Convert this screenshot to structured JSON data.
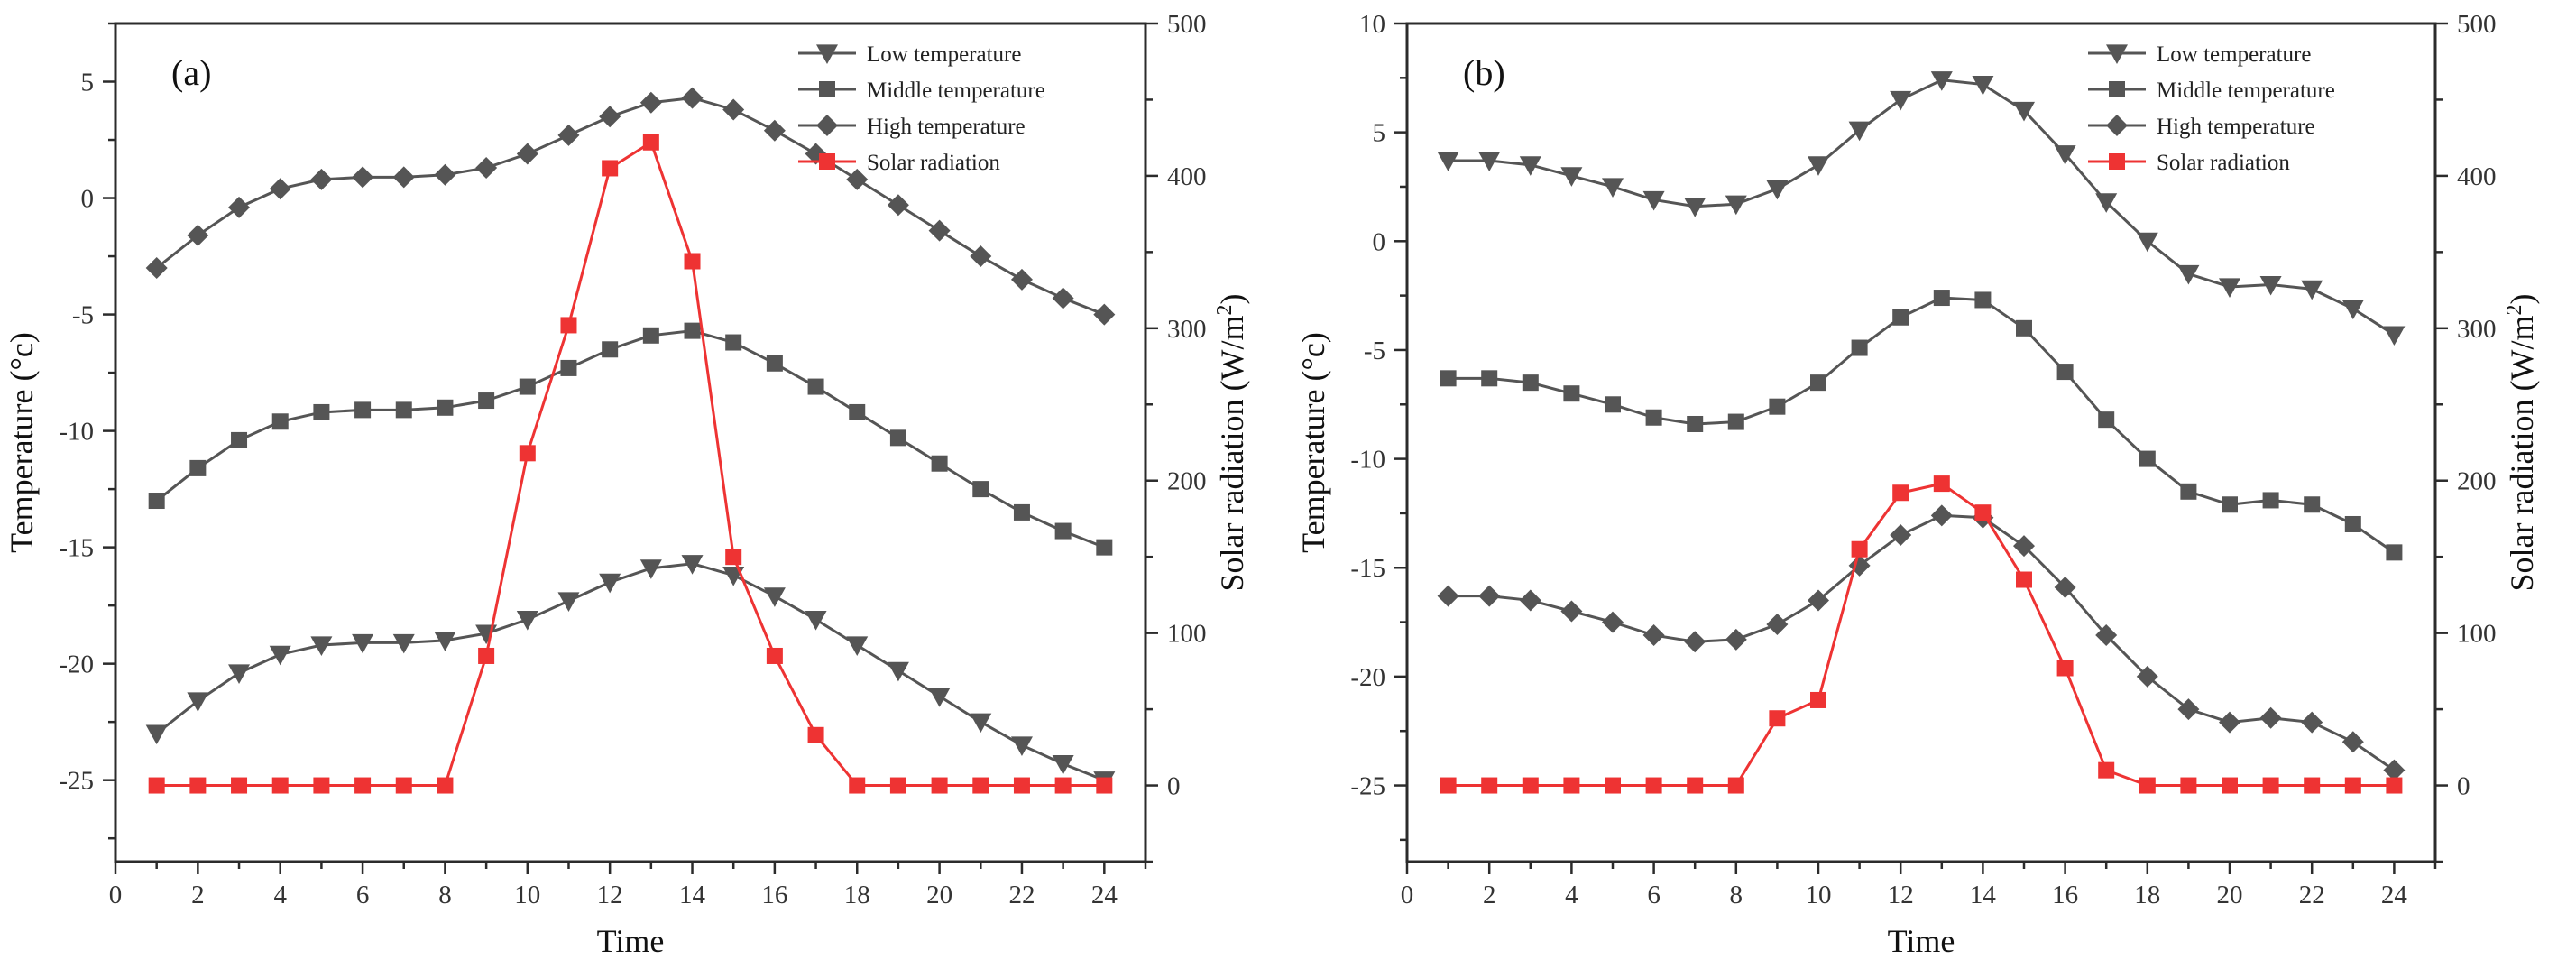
{
  "colors": {
    "temp_series": "#555555",
    "solar_series": "#ee3333",
    "axis": "#2b2b2b"
  },
  "chart_data": [
    {
      "type": "line",
      "panel_label": "(a)",
      "xlabel": "Time",
      "ylabel_left": "Temperature (°c)",
      "ylabel_right_main": "Solar radiation (W/m",
      "ylabel_right_sup": "2",
      "ylabel_right_end": ")",
      "xlim": [
        0,
        25
      ],
      "xticks": [
        "0",
        "2",
        "4",
        "6",
        "8",
        "10",
        "12",
        "14",
        "16",
        "18",
        "20",
        "22",
        "24"
      ],
      "ylim_left": [
        -28.5,
        7.5
      ],
      "yticks_left": [
        "-25",
        "-20",
        "-15",
        "-10",
        "-5",
        "0",
        "5"
      ],
      "ylim_right": [
        -50,
        500
      ],
      "yticks_right": [
        "0",
        "100",
        "200",
        "300",
        "400",
        "500"
      ],
      "legend_position": "top-right",
      "x": [
        1,
        2,
        3,
        4,
        5,
        6,
        7,
        8,
        9,
        10,
        11,
        12,
        13,
        14,
        15,
        16,
        17,
        18,
        19,
        20,
        21,
        22,
        23,
        24
      ],
      "series": [
        {
          "name": "Low temperature",
          "axis": "left",
          "marker": "triangle-down",
          "values": [
            -23.0,
            -21.6,
            -20.4,
            -19.6,
            -19.2,
            -19.1,
            -19.1,
            -19.0,
            -18.7,
            -18.1,
            -17.3,
            -16.5,
            -15.9,
            -15.7,
            -16.2,
            -17.1,
            -18.1,
            -19.2,
            -20.3,
            -21.4,
            -22.5,
            -23.5,
            -24.3,
            -25.0
          ]
        },
        {
          "name": "Middle temperature",
          "axis": "left",
          "marker": "square",
          "values": [
            -13.0,
            -11.6,
            -10.4,
            -9.6,
            -9.2,
            -9.1,
            -9.1,
            -9.0,
            -8.7,
            -8.1,
            -7.3,
            -6.5,
            -5.9,
            -5.7,
            -6.2,
            -7.1,
            -8.1,
            -9.2,
            -10.3,
            -11.4,
            -12.5,
            -13.5,
            -14.3,
            -15.0
          ]
        },
        {
          "name": "High temperature",
          "axis": "left",
          "marker": "diamond",
          "values": [
            -3.0,
            -1.6,
            -0.4,
            0.4,
            0.8,
            0.9,
            0.9,
            1.0,
            1.3,
            1.9,
            2.7,
            3.5,
            4.1,
            4.3,
            3.8,
            2.9,
            1.9,
            0.8,
            -0.3,
            -1.4,
            -2.5,
            -3.5,
            -4.3,
            -5.0
          ]
        },
        {
          "name": "Solar radiation",
          "axis": "right",
          "marker": "square",
          "values": [
            0,
            0,
            0,
            0,
            0,
            0,
            0,
            0,
            85,
            218,
            302,
            405,
            422,
            344,
            150,
            85,
            33,
            0,
            0,
            0,
            0,
            0,
            0,
            0
          ]
        }
      ]
    },
    {
      "type": "line",
      "panel_label": "(b)",
      "xlabel": "Time",
      "ylabel_left": "Temperature (°c)",
      "ylabel_right_main": "Solar radiation (W/m",
      "ylabel_right_sup": "2",
      "ylabel_right_end": ")",
      "xlim": [
        0,
        25
      ],
      "xticks": [
        "0",
        "2",
        "4",
        "6",
        "8",
        "10",
        "12",
        "14",
        "16",
        "18",
        "20",
        "22",
        "24"
      ],
      "ylim_left": [
        -28.5,
        10
      ],
      "yticks_left": [
        "-25",
        "-20",
        "-15",
        "-10",
        "-5",
        "0",
        "5",
        "10"
      ],
      "ylim_right": [
        -50,
        500
      ],
      "yticks_right": [
        "0",
        "100",
        "200",
        "300",
        "400",
        "500"
      ],
      "legend_position": "top-right",
      "x": [
        1,
        2,
        3,
        4,
        5,
        6,
        7,
        8,
        9,
        10,
        11,
        12,
        13,
        14,
        15,
        16,
        17,
        18,
        19,
        20,
        21,
        22,
        23,
        24
      ],
      "series": [
        {
          "name": "Low temperature",
          "axis": "left",
          "marker": "triangle-down",
          "values": [
            3.7,
            3.7,
            3.5,
            3.0,
            2.5,
            1.9,
            1.6,
            1.7,
            2.4,
            3.5,
            5.1,
            6.5,
            7.4,
            7.2,
            6.0,
            4.0,
            1.8,
            0.0,
            -1.5,
            -2.1,
            -2.0,
            -2.2,
            -3.1,
            -4.3
          ]
        },
        {
          "name": "Middle temperature",
          "axis": "left",
          "marker": "square",
          "values": [
            -6.3,
            -6.3,
            -6.5,
            -7.0,
            -7.5,
            -8.1,
            -8.4,
            -8.3,
            -7.6,
            -6.5,
            -4.9,
            -3.5,
            -2.6,
            -2.7,
            -4.0,
            -6.0,
            -8.2,
            -10.0,
            -11.5,
            -12.1,
            -11.9,
            -12.1,
            -13.0,
            -14.3
          ]
        },
        {
          "name": "High temperature",
          "axis": "left",
          "marker": "diamond",
          "values": [
            -16.3,
            -16.3,
            -16.5,
            -17.0,
            -17.5,
            -18.1,
            -18.4,
            -18.3,
            -17.6,
            -16.5,
            -14.9,
            -13.5,
            -12.6,
            -12.7,
            -14.0,
            -15.9,
            -18.1,
            -20.0,
            -21.5,
            -22.1,
            -21.9,
            -22.1,
            -23.0,
            -24.3
          ]
        },
        {
          "name": "Solar radiation",
          "axis": "right",
          "marker": "square",
          "values": [
            0,
            0,
            0,
            0,
            0,
            0,
            0,
            0,
            44,
            56,
            155,
            192,
            198,
            179,
            135,
            77,
            10,
            0,
            0,
            0,
            0,
            0,
            0,
            0
          ]
        }
      ]
    }
  ]
}
